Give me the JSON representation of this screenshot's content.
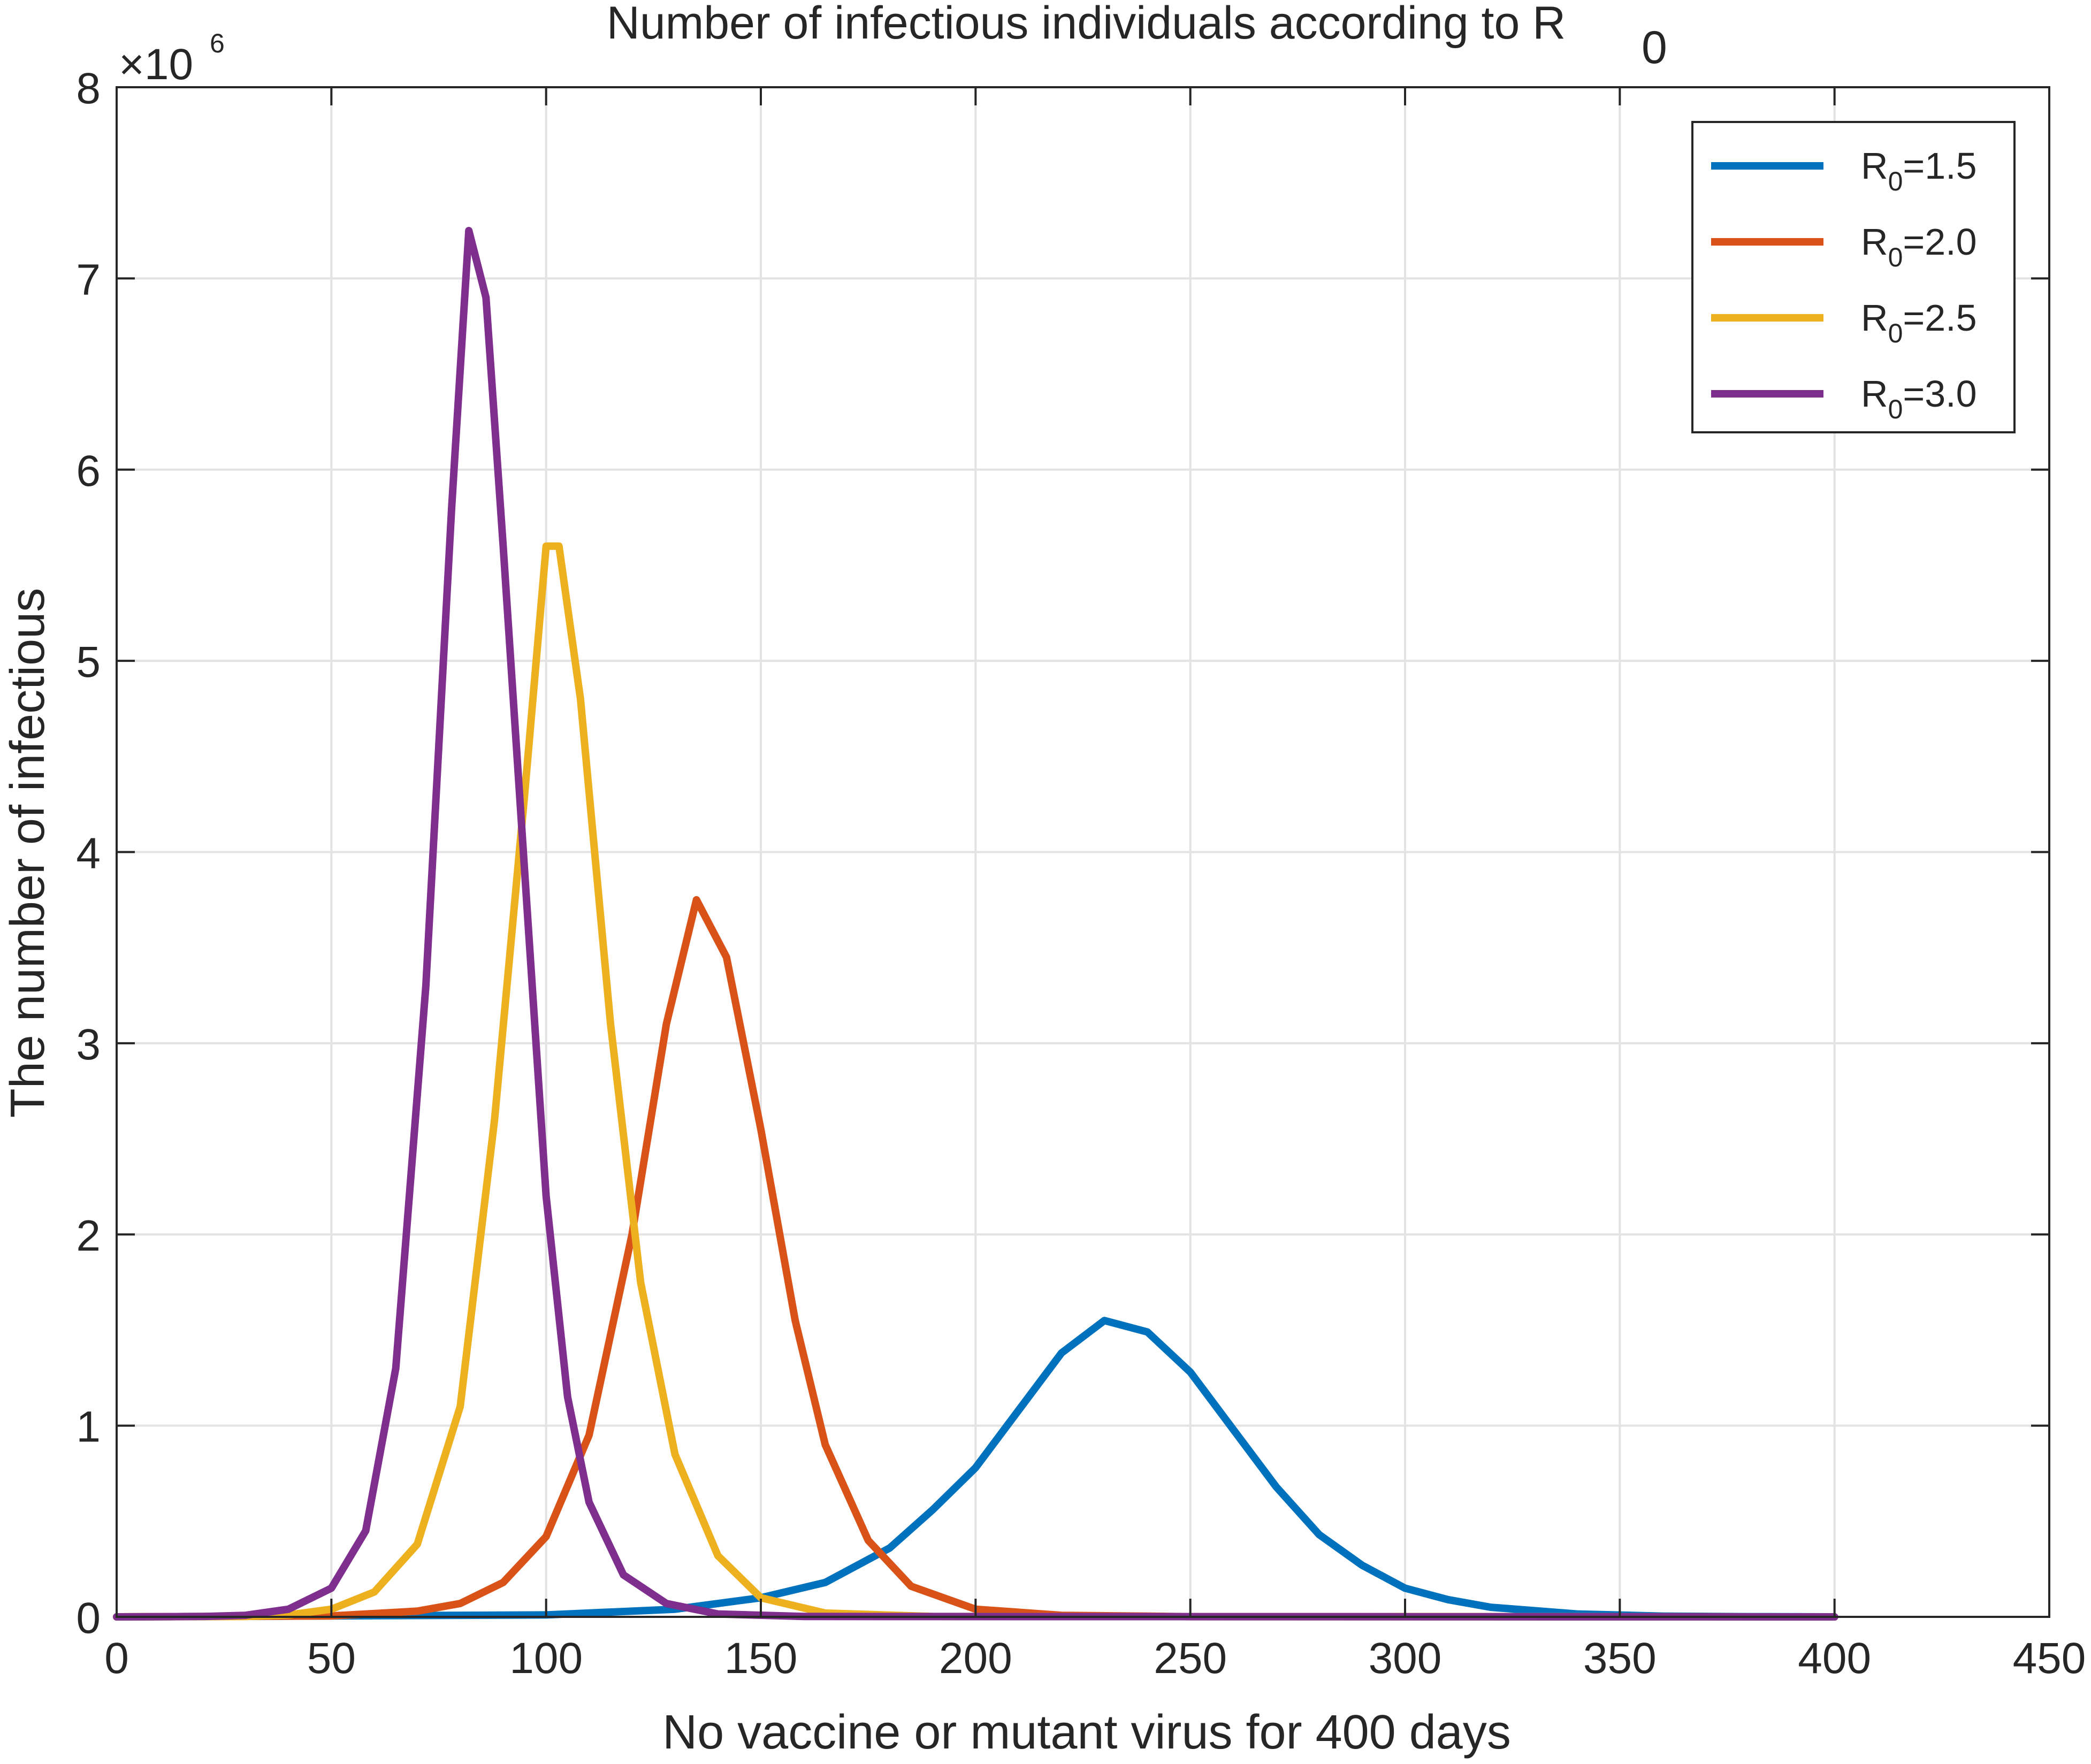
{
  "chart_data": {
    "type": "line",
    "title": "Number of infectious individuals according to R",
    "title_subscript": "0",
    "xlabel": "No vaccine or mutant virus for 400 days",
    "ylabel": "The number of infectious",
    "y_exponent_label": "×10",
    "y_exponent_power": "6",
    "xlim": [
      0,
      450
    ],
    "ylim": [
      0,
      8
    ],
    "x_ticks": [
      0,
      50,
      100,
      150,
      200,
      250,
      300,
      350,
      400,
      450
    ],
    "y_ticks": [
      0,
      1,
      2,
      3,
      4,
      5,
      6,
      7,
      8
    ],
    "grid": true,
    "legend_position": "top-right",
    "y_units_note": "values in millions (×10^6)",
    "series": [
      {
        "name": "R0=1.5",
        "legend_prefix": "R",
        "legend_sub": "0",
        "legend_suffix": "=1.5",
        "color": "#0072BD",
        "points": [
          [
            0,
            0
          ],
          [
            100,
            0.01
          ],
          [
            130,
            0.04
          ],
          [
            150,
            0.1
          ],
          [
            165,
            0.18
          ],
          [
            180,
            0.36
          ],
          [
            190,
            0.56
          ],
          [
            200,
            0.78
          ],
          [
            210,
            1.08
          ],
          [
            220,
            1.38
          ],
          [
            230,
            1.55
          ],
          [
            240,
            1.49
          ],
          [
            250,
            1.28
          ],
          [
            260,
            0.98
          ],
          [
            270,
            0.68
          ],
          [
            280,
            0.43
          ],
          [
            290,
            0.27
          ],
          [
            300,
            0.15
          ],
          [
            310,
            0.09
          ],
          [
            320,
            0.05
          ],
          [
            340,
            0.015
          ],
          [
            360,
            0.004
          ],
          [
            380,
            0.001
          ],
          [
            400,
            0
          ]
        ]
      },
      {
        "name": "R0=2.0",
        "legend_prefix": "R",
        "legend_sub": "0",
        "legend_suffix": "=2.0",
        "color": "#D95319",
        "points": [
          [
            0,
            0
          ],
          [
            50,
            0.005
          ],
          [
            70,
            0.03
          ],
          [
            80,
            0.07
          ],
          [
            90,
            0.18
          ],
          [
            100,
            0.42
          ],
          [
            110,
            0.95
          ],
          [
            120,
            2.0
          ],
          [
            128,
            3.1
          ],
          [
            135,
            3.75
          ],
          [
            142,
            3.45
          ],
          [
            150,
            2.55
          ],
          [
            158,
            1.55
          ],
          [
            165,
            0.9
          ],
          [
            175,
            0.4
          ],
          [
            185,
            0.16
          ],
          [
            200,
            0.04
          ],
          [
            220,
            0.008
          ],
          [
            250,
            0.001
          ],
          [
            400,
            0
          ]
        ]
      },
      {
        "name": "R0=2.5",
        "legend_prefix": "R",
        "legend_sub": "0",
        "legend_suffix": "=2.5",
        "color": "#EDB120",
        "points": [
          [
            0,
            0
          ],
          [
            30,
            0.002
          ],
          [
            40,
            0.01
          ],
          [
            50,
            0.04
          ],
          [
            60,
            0.13
          ],
          [
            70,
            0.38
          ],
          [
            80,
            1.1
          ],
          [
            88,
            2.6
          ],
          [
            95,
            4.3
          ],
          [
            100,
            5.6
          ],
          [
            103,
            5.6
          ],
          [
            108,
            4.8
          ],
          [
            115,
            3.1
          ],
          [
            122,
            1.75
          ],
          [
            130,
            0.85
          ],
          [
            140,
            0.32
          ],
          [
            150,
            0.1
          ],
          [
            165,
            0.02
          ],
          [
            190,
            0.002
          ],
          [
            400,
            0
          ]
        ]
      },
      {
        "name": "R0=3.0",
        "legend_prefix": "R",
        "legend_sub": "0",
        "legend_suffix": "=3.0",
        "color": "#7E2F8E",
        "points": [
          [
            0,
            0
          ],
          [
            20,
            0.002
          ],
          [
            30,
            0.008
          ],
          [
            40,
            0.04
          ],
          [
            50,
            0.15
          ],
          [
            58,
            0.45
          ],
          [
            65,
            1.3
          ],
          [
            72,
            3.3
          ],
          [
            78,
            5.8
          ],
          [
            82,
            7.25
          ],
          [
            86,
            6.9
          ],
          [
            90,
            5.6
          ],
          [
            95,
            3.9
          ],
          [
            100,
            2.2
          ],
          [
            105,
            1.15
          ],
          [
            110,
            0.6
          ],
          [
            118,
            0.22
          ],
          [
            128,
            0.07
          ],
          [
            140,
            0.015
          ],
          [
            160,
            0.002
          ],
          [
            400,
            0
          ]
        ]
      }
    ]
  }
}
